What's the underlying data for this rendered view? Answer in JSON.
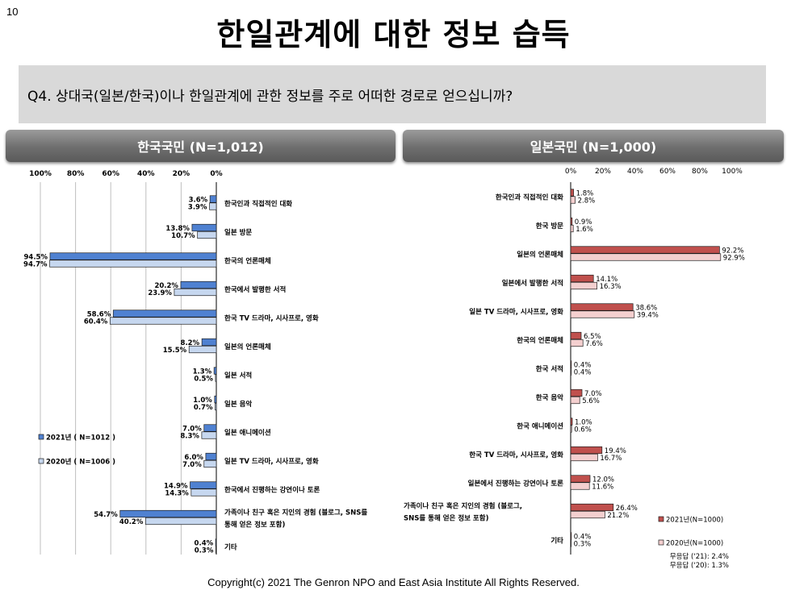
{
  "page_number": "10",
  "title": "한일관계에 대한 정보 습득",
  "question": "Q4. 상대국(일본/한국)이나 한일관계에 관한 정보를 주로 어떠한 경로로 얻으십니까?",
  "copyright": "Copyright(c) 2021 The Genron NPO and East Asia Institute  All Rights Reserved.",
  "colors": {
    "korea_2021": "#4f81d1",
    "korea_2020": "#c6d7ef",
    "japan_2021": "#c0504d",
    "japan_2020": "#f4cfcf",
    "header_bg": "#7f7f7f",
    "question_bg": "#d9d9d9"
  },
  "chart_data": [
    {
      "type": "bar",
      "orientation": "horizontal",
      "direction": "right-to-left",
      "title": "한국국민 (N=1,012)",
      "x_ticks": [
        "100%",
        "80%",
        "60%",
        "40%",
        "20%",
        "0%"
      ],
      "xlim": [
        0,
        100
      ],
      "grid": true,
      "legend_position": "left",
      "categories": [
        "한국인과 직접적인 대화",
        "일본 방문",
        "한국의 언론매체",
        "한국에서 발행한 서적",
        "한국 TV 드라마, 시사프로, 영화",
        "일본의 언론매체",
        "일본 서적",
        "일본 음악",
        "일본 애니메이션",
        "일본 TV 드라마, 시사프로, 영화",
        "한국에서 진행하는 강연이나 토론",
        "가족이나 친구 혹은 지인의 경험 (블로그, SNS를\n통해 얻은 정보 포함)",
        "기타"
      ],
      "series": [
        {
          "name": "2021년 ( N=1012 )",
          "values": [
            3.6,
            13.8,
            94.5,
            20.2,
            58.6,
            8.2,
            1.3,
            1.0,
            7.0,
            6.0,
            14.9,
            54.7,
            0.4
          ],
          "labels": [
            "3.6%",
            "13.8%",
            "94.5%",
            "20.2%",
            "58.6%",
            "8.2%",
            "1.3%",
            "1.0%",
            "7.0%",
            "6.0%",
            "14.9%",
            "54.7%",
            "0.4%"
          ]
        },
        {
          "name": "2020년 ( N=1006 )",
          "values": [
            3.9,
            10.7,
            94.7,
            23.9,
            60.4,
            15.5,
            0.5,
            0.7,
            8.3,
            7.0,
            14.3,
            40.2,
            0.3
          ],
          "labels": [
            "3.9%",
            "10.7%",
            "94.7%",
            "23.9%",
            "60.4%",
            "15.5%",
            "0.5%",
            "0.7%",
            "8.3%",
            "7.0%",
            "14.3%",
            "40.2%",
            "0.3%"
          ]
        }
      ]
    },
    {
      "type": "bar",
      "orientation": "horizontal",
      "direction": "left-to-right",
      "title": "일본국민 (N=1,000)",
      "x_ticks": [
        "0%",
        "20%",
        "40%",
        "60%",
        "80%",
        "100%"
      ],
      "xlim": [
        0,
        100
      ],
      "grid": false,
      "legend_position": "bottom-right",
      "categories": [
        "한국인과 직접적인 대화",
        "한국 방문",
        "일본의 언론매체",
        "일본에서 발행한 서적",
        "일본 TV 드라마, 시사프로, 영화",
        "한국의 언론매체",
        "한국 서적",
        "한국 음악",
        "한국 애니메이션",
        "한국 TV 드라마, 시사프로, 영화",
        "일본에서 진행하는 강연이나 토론",
        "가족이나 친구 혹은 지인의 경험 (블로그,\nSNS를 통해 얻은 정보 포함)",
        "기타"
      ],
      "series": [
        {
          "name": "2021년(N=1000)",
          "values": [
            1.8,
            0.9,
            92.2,
            14.1,
            38.6,
            6.5,
            0.4,
            7.0,
            1.0,
            19.4,
            12.0,
            26.4,
            0.4
          ],
          "labels": [
            "1.8%",
            "0.9%",
            "92.2%",
            "14.1%",
            "38.6%",
            "6.5%",
            "0.4%",
            "7.0%",
            "1.0%",
            "19.4%",
            "12.0%",
            "26.4%",
            "0.4%"
          ]
        },
        {
          "name": "2020년(N=1000)",
          "values": [
            2.8,
            1.6,
            92.9,
            16.3,
            39.4,
            7.6,
            0.4,
            5.6,
            0.6,
            16.7,
            11.6,
            21.2,
            0.3
          ],
          "labels": [
            "2.8%",
            "1.6%",
            "92.9%",
            "16.3%",
            "39.4%",
            "7.6%",
            "0.4%",
            "5.6%",
            "0.6%",
            "16.7%",
            "11.6%",
            "21.2%",
            "0.3%"
          ]
        }
      ],
      "notes": [
        "무응답 ('21): 2.4%",
        "무응답 ('20): 1.3%"
      ]
    }
  ]
}
